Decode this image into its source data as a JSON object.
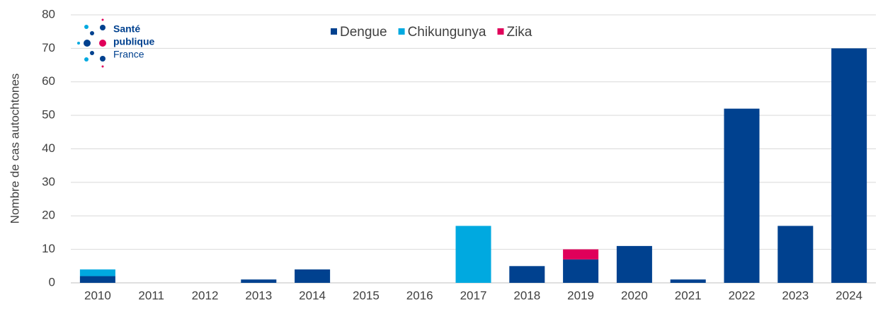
{
  "chart_data": {
    "type": "stacked_bar",
    "y_label": "Nombre de cas autochtones",
    "categories": [
      "2010",
      "2011",
      "2012",
      "2013",
      "2014",
      "2015",
      "2016",
      "2017",
      "2018",
      "2019",
      "2020",
      "2021",
      "2022",
      "2023",
      "2024"
    ],
    "series": [
      {
        "name": "Dengue",
        "color": "#00418f",
        "values": [
          2,
          0,
          0,
          1,
          4,
          0,
          0,
          0,
          5,
          7,
          11,
          1,
          52,
          17,
          70
        ]
      },
      {
        "name": "Chikungunya",
        "color": "#00a9e0",
        "values": [
          2,
          0,
          0,
          0,
          0,
          0,
          0,
          17,
          0,
          0,
          0,
          0,
          0,
          0,
          0
        ]
      },
      {
        "name": "Zika",
        "color": "#e0005a",
        "values": [
          0,
          0,
          0,
          0,
          0,
          0,
          0,
          0,
          0,
          3,
          0,
          0,
          0,
          0,
          0
        ]
      }
    ],
    "ylim": [
      0,
      80
    ],
    "yticks": [
      0,
      10,
      20,
      30,
      40,
      50,
      60,
      70,
      80
    ],
    "grid": true,
    "logo": [
      "Santé",
      "publique",
      "France"
    ]
  }
}
